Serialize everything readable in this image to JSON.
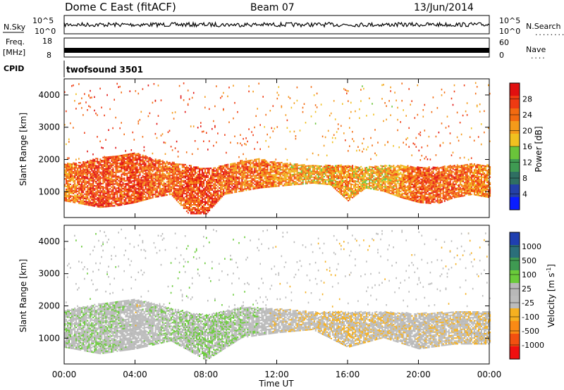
{
  "header": {
    "station": "Dome C East (fitACF)",
    "beam": "Beam 07",
    "date": "13/Jun/2014"
  },
  "strips": {
    "nsky": {
      "label": "N.Sky",
      "ticks": [
        "10^5",
        "10^0"
      ],
      "right_ticks": [
        "10^5",
        "10^0"
      ],
      "right_label": "N.Search",
      "right_dots": "........"
    },
    "freq": {
      "label": "Freq.",
      "unit": "[MHz]",
      "ticks": [
        "18",
        "8"
      ],
      "right_ticks": [
        "60",
        "0"
      ],
      "right_label": "Nave",
      "right_dots": "...."
    },
    "cpid": {
      "label": "CPID",
      "value": "twofsound 3501"
    }
  },
  "colors": {
    "power": [
      "#0a1dff",
      "#2440a8",
      "#2f6f62",
      "#3f9a52",
      "#6ac43a",
      "#f0c020",
      "#f49a1a",
      "#f36a10",
      "#ef3a12",
      "#e01010"
    ],
    "velocity": [
      "#f01010",
      "#f25010",
      "#f98a15",
      "#f5b020",
      "#bcbcbc",
      "#b8b8b8",
      "#6acb3a",
      "#3f9a52",
      "#2b6f7a",
      "#1f3fb0"
    ]
  },
  "chart_data": [
    {
      "type": "heatmap",
      "name": "power",
      "ylabel": "Slant Range [km]",
      "yticks": [
        "1000",
        "2000",
        "3000",
        "4000"
      ],
      "ylim": [
        200,
        4500
      ],
      "colorbar": {
        "label": "Power [dB]",
        "ticks": [
          "28",
          "24",
          "20",
          "16",
          "12",
          "8",
          "4"
        ],
        "range": [
          0,
          32
        ]
      },
      "scatter_band": [
        {
          "t": 0.0,
          "lo": 700,
          "hi": 1850,
          "level": 22
        },
        {
          "t": 1.0,
          "lo": 600,
          "hi": 1900,
          "level": 25
        },
        {
          "t": 2.0,
          "lo": 500,
          "hi": 2050,
          "level": 27
        },
        {
          "t": 3.0,
          "lo": 550,
          "hi": 2100,
          "level": 26
        },
        {
          "t": 4.0,
          "lo": 650,
          "hi": 2200,
          "level": 27
        },
        {
          "t": 5.0,
          "lo": 800,
          "hi": 2000,
          "level": 25
        },
        {
          "t": 6.0,
          "lo": 900,
          "hi": 1900,
          "level": 24
        },
        {
          "t": 7.0,
          "lo": 300,
          "hi": 1800,
          "level": 26
        },
        {
          "t": 8.0,
          "lo": 300,
          "hi": 1700,
          "level": 27
        },
        {
          "t": 9.0,
          "lo": 900,
          "hi": 1800,
          "level": 25
        },
        {
          "t": 10.0,
          "lo": 1000,
          "hi": 1950,
          "level": 24
        },
        {
          "t": 11.0,
          "lo": 1100,
          "hi": 2000,
          "level": 24
        },
        {
          "t": 12.0,
          "lo": 1150,
          "hi": 1900,
          "level": 22
        },
        {
          "t": 13.0,
          "lo": 1200,
          "hi": 1850,
          "level": 21
        },
        {
          "t": 14.0,
          "lo": 1250,
          "hi": 1800,
          "level": 20
        },
        {
          "t": 15.0,
          "lo": 1200,
          "hi": 1800,
          "level": 21
        },
        {
          "t": 16.0,
          "lo": 700,
          "hi": 1800,
          "level": 22
        },
        {
          "t": 17.0,
          "lo": 1100,
          "hi": 1750,
          "level": 20
        },
        {
          "t": 18.0,
          "lo": 1000,
          "hi": 1800,
          "level": 20
        },
        {
          "t": 19.0,
          "lo": 800,
          "hi": 1800,
          "level": 22
        },
        {
          "t": 20.0,
          "lo": 650,
          "hi": 1750,
          "level": 25
        },
        {
          "t": 21.0,
          "lo": 600,
          "hi": 1750,
          "level": 26
        },
        {
          "t": 22.0,
          "lo": 800,
          "hi": 1800,
          "level": 24
        },
        {
          "t": 23.0,
          "lo": 900,
          "hi": 1850,
          "level": 23
        },
        {
          "t": 24.0,
          "lo": 800,
          "hi": 1800,
          "level": 22
        }
      ]
    },
    {
      "type": "heatmap",
      "name": "velocity",
      "ylabel": "Slant Range [km]",
      "yticks": [
        "1000",
        "2000",
        "3000",
        "4000"
      ],
      "ylim": [
        200,
        4500
      ],
      "colorbar": {
        "label": "Velocity [m s",
        "label_sup": "-1",
        "label_end": "]",
        "ticks": [
          "1000",
          "500",
          "100",
          "25",
          "-25",
          "-100",
          "-500",
          "-1000"
        ],
        "range": [
          -1200,
          1200
        ]
      },
      "scatter_band": [
        {
          "t": 0.0,
          "lo": 700,
          "hi": 1850,
          "level": -100
        },
        {
          "t": 2.0,
          "lo": 500,
          "hi": 2050,
          "level": -150
        },
        {
          "t": 4.0,
          "lo": 650,
          "hi": 2200,
          "level": 20
        },
        {
          "t": 6.0,
          "lo": 900,
          "hi": 1900,
          "level": -120
        },
        {
          "t": 8.0,
          "lo": 300,
          "hi": 1700,
          "level": -200
        },
        {
          "t": 10.0,
          "lo": 1000,
          "hi": 1950,
          "level": -150
        },
        {
          "t": 12.0,
          "lo": 1150,
          "hi": 1900,
          "level": 80
        },
        {
          "t": 14.0,
          "lo": 1250,
          "hi": 1800,
          "level": 120
        },
        {
          "t": 16.0,
          "lo": 700,
          "hi": 1800,
          "level": 200
        },
        {
          "t": 18.0,
          "lo": 1000,
          "hi": 1800,
          "level": 110
        },
        {
          "t": 20.0,
          "lo": 650,
          "hi": 1750,
          "level": 60
        },
        {
          "t": 22.0,
          "lo": 800,
          "hi": 1800,
          "level": 130
        },
        {
          "t": 24.0,
          "lo": 800,
          "hi": 1800,
          "level": 150
        }
      ]
    }
  ],
  "xaxis": {
    "ticks": [
      "00:00",
      "04:00",
      "08:00",
      "12:00",
      "16:00",
      "20:00",
      "00:00"
    ],
    "label": "Time UT",
    "xlim": [
      0,
      24
    ]
  }
}
